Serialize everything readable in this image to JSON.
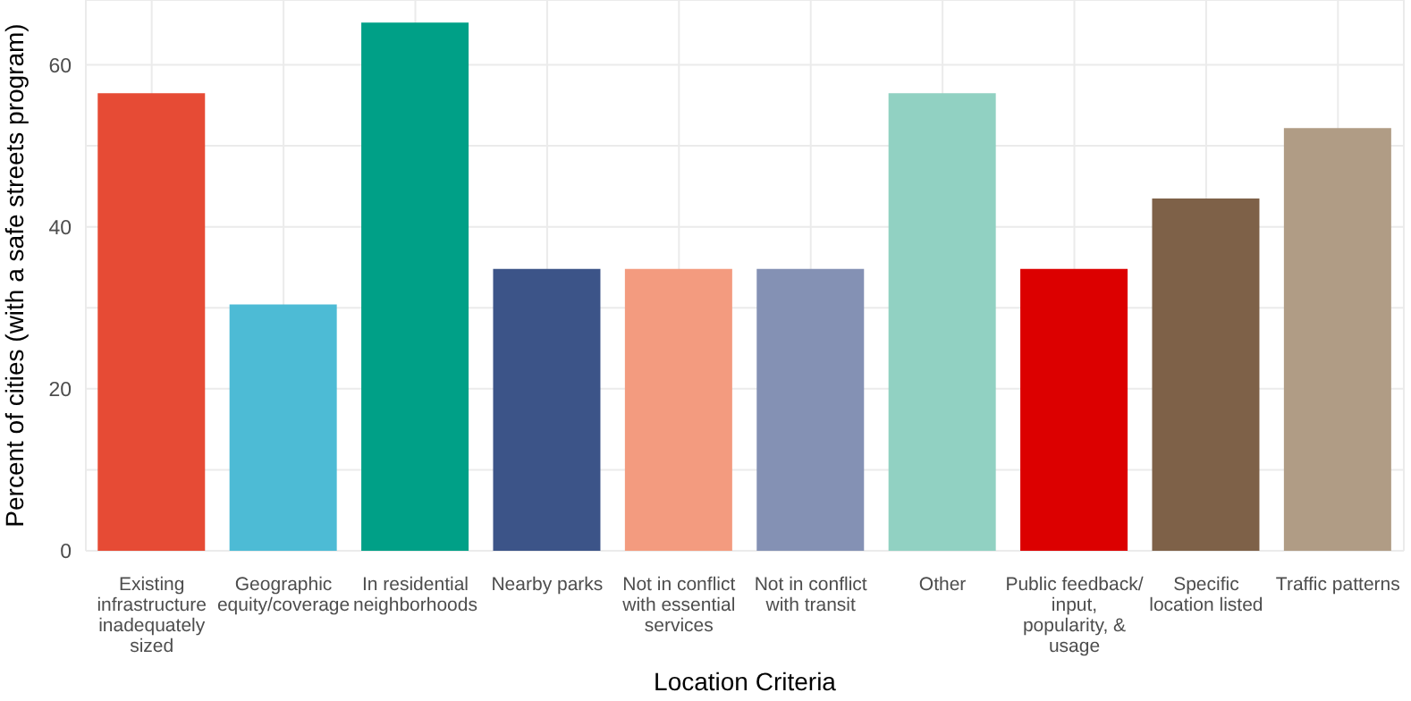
{
  "chart_data": {
    "type": "bar",
    "xlabel": "Location Criteria",
    "ylabel": "Percent of cities (with a safe streets program)",
    "categories": [
      "Existing infrastructure inadequately sized",
      "Geographic equity/coverage",
      "In residential neighborhoods",
      "Nearby parks",
      "Not in conflict with essential services",
      "Not in conflict with transit",
      "Other",
      "Public feedback/ input, popularity, & usage",
      "Specific location listed",
      "Traffic patterns"
    ],
    "values": [
      56.5,
      30.4,
      65.2,
      34.8,
      34.8,
      34.8,
      56.5,
      34.8,
      43.5,
      52.2
    ],
    "colors": [
      "#e64b35",
      "#4dbbd5",
      "#00a087",
      "#3c5488",
      "#f39b7f",
      "#8491b4",
      "#91d1c2",
      "#dc0000",
      "#7e6148",
      "#b09c85"
    ],
    "ylim": [
      0,
      68
    ],
    "yticks": [
      0,
      {
        "value": 10,
        "label": null
      },
      20,
      {
        "value": 30,
        "label": null
      },
      40,
      {
        "value": 50,
        "label": null
      },
      60
    ],
    "grid": true
  }
}
